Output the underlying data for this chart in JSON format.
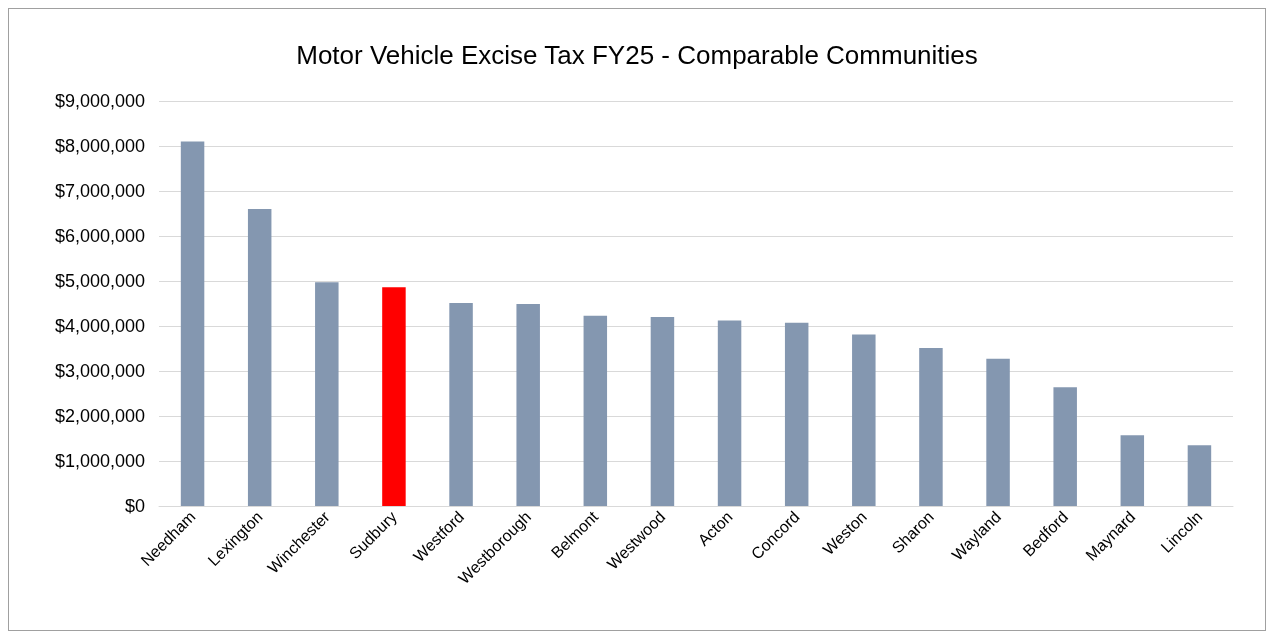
{
  "chart_data": {
    "type": "bar",
    "title": "Motor Vehicle Excise Tax FY25 - Comparable Communities",
    "categories": [
      "Needham",
      "Lexington",
      "Winchester",
      "Sudbury",
      "Westford",
      "Westborough",
      "Belmont",
      "Westwood",
      "Acton",
      "Concord",
      "Weston",
      "Sharon",
      "Wayland",
      "Bedford",
      "Maynard",
      "Lincoln"
    ],
    "values": [
      8100000,
      6600000,
      4970000,
      4860000,
      4510000,
      4490000,
      4230000,
      4200000,
      4120000,
      4070000,
      3810000,
      3510000,
      3270000,
      2640000,
      1570000,
      1350000
    ],
    "colors": [
      "#8497b0",
      "#8497b0",
      "#8497b0",
      "#ff0000",
      "#8497b0",
      "#8497b0",
      "#8497b0",
      "#8497b0",
      "#8497b0",
      "#8497b0",
      "#8497b0",
      "#8497b0",
      "#8497b0",
      "#8497b0",
      "#8497b0",
      "#8497b0"
    ],
    "ylim": [
      0,
      9000000
    ],
    "yticks": [
      {
        "value": 0,
        "label": "$0"
      },
      {
        "value": 1000000,
        "label": "$1,000,000"
      },
      {
        "value": 2000000,
        "label": "$2,000,000"
      },
      {
        "value": 3000000,
        "label": "$3,000,000"
      },
      {
        "value": 4000000,
        "label": "$4,000,000"
      },
      {
        "value": 5000000,
        "label": "$5,000,000"
      },
      {
        "value": 6000000,
        "label": "$6,000,000"
      },
      {
        "value": 7000000,
        "label": "$7,000,000"
      },
      {
        "value": 8000000,
        "label": "$8,000,000"
      },
      {
        "value": 9000000,
        "label": "$9,000,000"
      }
    ],
    "grid": "y"
  }
}
